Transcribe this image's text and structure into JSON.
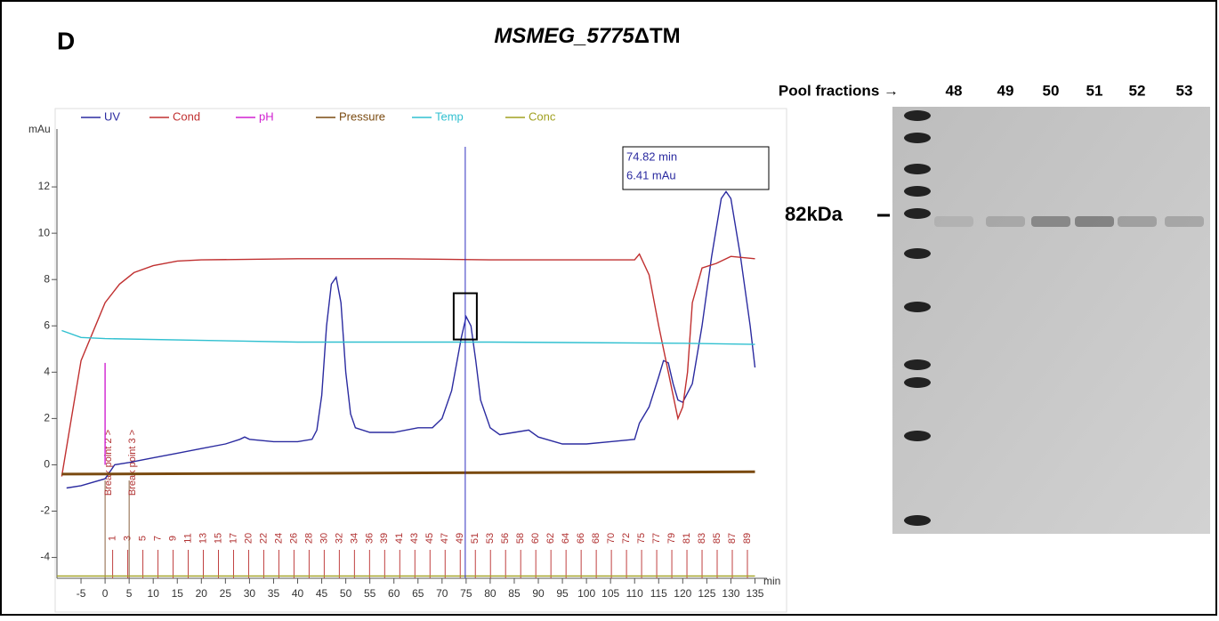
{
  "panel_label": "D",
  "title": {
    "italic": "MSMEG_5775",
    "rest": "ΔTM"
  },
  "chart_data": {
    "type": "line",
    "y_label": "mAu",
    "x_label": "min",
    "xlim": [
      -10,
      137.5
    ],
    "ylim": [
      -4.9,
      14.5
    ],
    "xticks": [
      -5,
      0,
      5,
      10,
      15,
      20,
      25,
      30,
      35,
      40,
      45,
      50,
      55,
      60,
      65,
      70,
      75,
      80,
      85,
      90,
      95,
      100,
      105,
      110,
      115,
      120,
      125,
      130,
      135
    ],
    "yticks": [
      -4,
      -2,
      0,
      2,
      4,
      6,
      8,
      10,
      12
    ],
    "series": [
      {
        "name": "UV",
        "color": "#2b2ba0",
        "x": [
          -8,
          -5,
          0,
          2,
          5,
          10,
          15,
          20,
          25,
          28,
          29,
          30,
          35,
          40,
          43,
          44,
          45,
          46,
          47,
          48,
          49,
          50,
          51,
          52,
          55,
          60,
          65,
          68,
          70,
          72,
          74,
          75,
          76,
          77,
          78,
          80,
          82,
          85,
          88,
          90,
          95,
          100,
          105,
          110,
          111,
          113,
          115,
          116,
          117,
          118,
          119,
          120,
          122,
          124,
          126,
          128,
          129,
          130,
          132,
          134,
          135
        ],
        "values": [
          -1.0,
          -0.9,
          -0.6,
          0,
          0.1,
          0.3,
          0.5,
          0.7,
          0.9,
          1.1,
          1.2,
          1.1,
          1.0,
          1.0,
          1.1,
          1.5,
          3,
          6,
          7.8,
          8.1,
          7,
          4,
          2.2,
          1.6,
          1.4,
          1.4,
          1.6,
          1.6,
          2.0,
          3.2,
          5.5,
          6.4,
          6.0,
          4.5,
          2.8,
          1.6,
          1.3,
          1.4,
          1.5,
          1.2,
          0.9,
          0.9,
          1.0,
          1.1,
          1.8,
          2.5,
          3.8,
          4.5,
          4.4,
          3.5,
          2.8,
          2.7,
          3.5,
          6,
          9,
          11.5,
          11.8,
          11.5,
          9,
          6,
          4.2
        ]
      },
      {
        "name": "Cond",
        "color": "#c03030",
        "x": [
          -9,
          -7,
          -5,
          -2,
          0,
          3,
          6,
          10,
          15,
          20,
          40,
          60,
          80,
          100,
          110,
          111,
          113,
          115,
          117,
          119,
          120,
          121,
          122,
          124,
          127,
          130,
          135
        ],
        "values": [
          -0.5,
          2,
          4.5,
          6,
          7,
          7.8,
          8.3,
          8.6,
          8.8,
          8.85,
          8.9,
          8.9,
          8.85,
          8.85,
          8.85,
          9.1,
          8.2,
          6,
          4,
          2,
          2.5,
          4,
          7,
          8.5,
          8.7,
          9.0,
          8.9
        ]
      },
      {
        "name": "pH",
        "color": "#d020d0",
        "x": [
          0,
          0
        ],
        "values": [
          0,
          4.4
        ]
      },
      {
        "name": "Pressure",
        "color": "#7a4a10",
        "x": [
          -9,
          135
        ],
        "values": [
          -0.4,
          -0.3
        ]
      },
      {
        "name": "Temp",
        "color": "#30c0d0",
        "x": [
          -9,
          -5,
          0,
          40,
          80,
          120,
          135
        ],
        "values": [
          5.8,
          5.5,
          5.45,
          5.3,
          5.3,
          5.25,
          5.2
        ]
      },
      {
        "name": "Conc",
        "color": "#a0a020",
        "x": [
          -10,
          135
        ],
        "values": [
          -4.8,
          -4.8
        ]
      }
    ],
    "cursor": {
      "x": 74.82,
      "y": 6.41,
      "label": [
        "74.82 min",
        "6.41  mAu"
      ]
    },
    "break_points": [
      {
        "x": 0,
        "label": "Break point 2 >"
      },
      {
        "x": 5,
        "label": "Break point 3 >"
      }
    ],
    "fractions": [
      "1",
      "3",
      "5",
      "7",
      "9",
      "11",
      "13",
      "15",
      "17",
      "20",
      "22",
      "24",
      "26",
      "28",
      "30",
      "32",
      "34",
      "36",
      "39",
      "41",
      "43",
      "45",
      "47",
      "49",
      "51",
      "53",
      "56",
      "58",
      "60",
      "62",
      "64",
      "66",
      "68",
      "70",
      "72",
      "75",
      "77",
      "79",
      "81",
      "83",
      "85",
      "87",
      "89"
    ]
  },
  "gel": {
    "header": "Pool fractions →",
    "lanes": [
      "48",
      "49",
      "50",
      "51",
      "52",
      "53"
    ],
    "marker": "82kDa"
  }
}
